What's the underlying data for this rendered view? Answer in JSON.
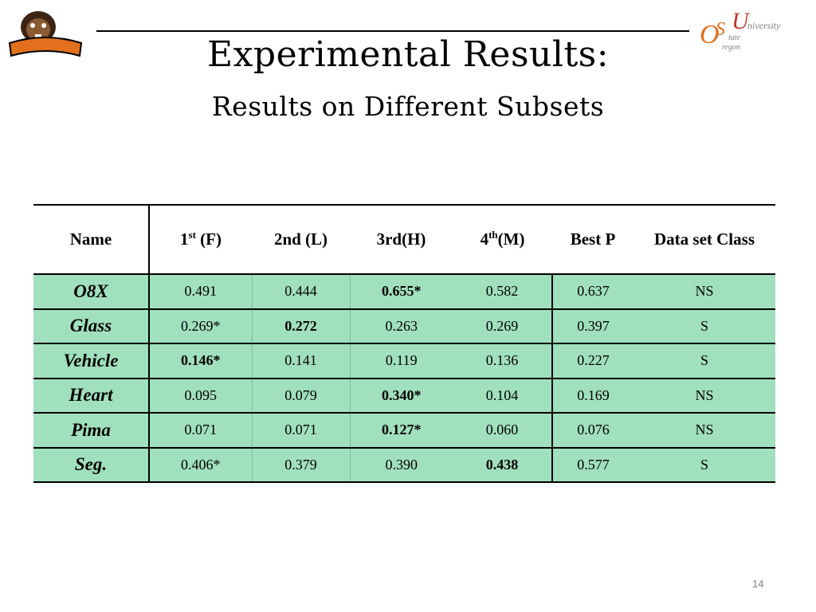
{
  "slide": {
    "title": "Experimental Results:",
    "subtitle": "Results on Different Subsets",
    "page_number": "14"
  },
  "logos": {
    "left": {
      "icon": "beavers-logo",
      "text": "Beavers"
    },
    "right": {
      "icon": "osu-logo",
      "text": "Oregon State University"
    }
  },
  "table": {
    "headers": {
      "name": "Name",
      "first_base": "1",
      "first_sup": "st",
      "first_tail": " (F)",
      "second": "2nd (L)",
      "third": "3rd(H)",
      "fourth_base": "4",
      "fourth_sup": "th",
      "fourth_tail": "(M)",
      "best_p": "Best P",
      "class": "Data set Class"
    },
    "rows": [
      {
        "name": "O8X",
        "v1": "0.491",
        "v2": "0.444",
        "v3": "0.655*",
        "v4": "0.582",
        "best": "0.637",
        "cls": "NS",
        "bold_col": 3
      },
      {
        "name": "Glass",
        "v1": "0.269*",
        "v2": "0.272",
        "v3": "0.263",
        "v4": "0.269",
        "best": "0.397",
        "cls": "S",
        "bold_col": 2
      },
      {
        "name": "Vehicle",
        "v1": "0.146*",
        "v2": "0.141",
        "v3": "0.119",
        "v4": "0.136",
        "best": "0.227",
        "cls": "S",
        "bold_col": 1
      },
      {
        "name": "Heart",
        "v1": "0.095",
        "v2": "0.079",
        "v3": "0.340*",
        "v4": "0.104",
        "best": "0.169",
        "cls": "NS",
        "bold_col": 3
      },
      {
        "name": "Pima",
        "v1": "0.071",
        "v2": "0.071",
        "v3": "0.127*",
        "v4": "0.060",
        "best": "0.076",
        "cls": "NS",
        "bold_col": 3
      },
      {
        "name": "Seg.",
        "v1": "0.406*",
        "v2": "0.379",
        "v3": "0.390",
        "v4": "0.438",
        "best": "0.577",
        "cls": "S",
        "bold_col": 4
      }
    ]
  },
  "colors": {
    "row_fill": "#a1e0bd",
    "logo_orange": "#e2701d",
    "osu_red": "#c0392b"
  }
}
